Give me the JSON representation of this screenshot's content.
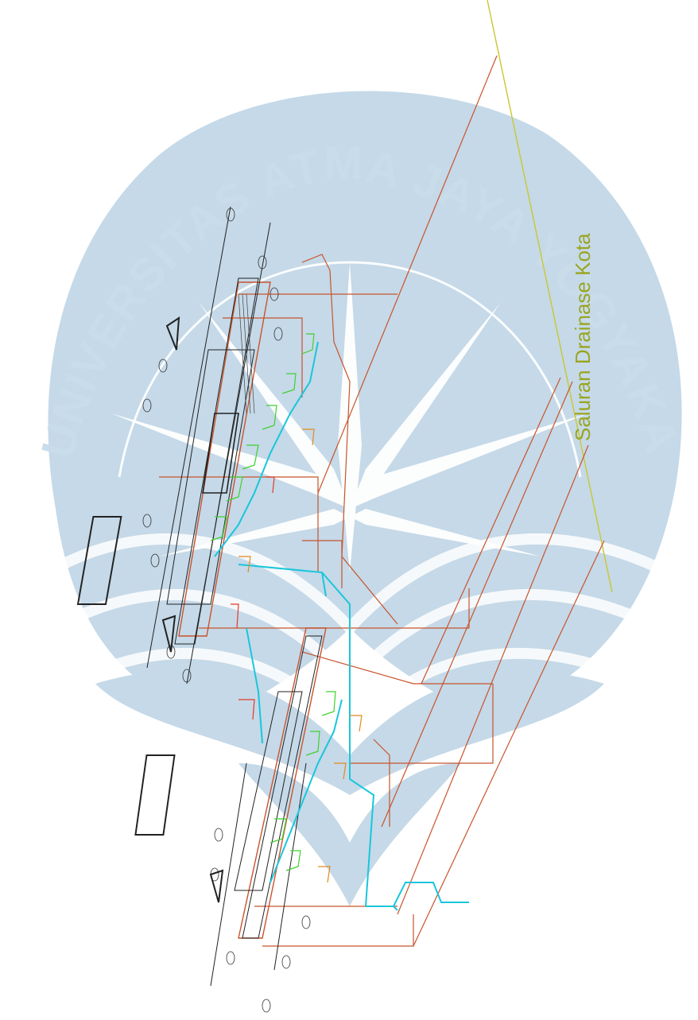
{
  "watermark": {
    "text": "UNIVERSITAS ATMA JAYA YOGYAKARTA",
    "emblem": "atma-jaya-compass-emblem",
    "color": "#c9dcea"
  },
  "annotations": {
    "drainage_label": "Saluran Drainase Kota"
  },
  "colors": {
    "structure": "#c8542c",
    "clean_water": "#19c6dc",
    "fixture_branch": "#3fd12e",
    "drain_branch": "#e28a1e",
    "drainage_line": "#c9c830",
    "drainage_text": "#9aa520",
    "drawing": "#222222"
  }
}
